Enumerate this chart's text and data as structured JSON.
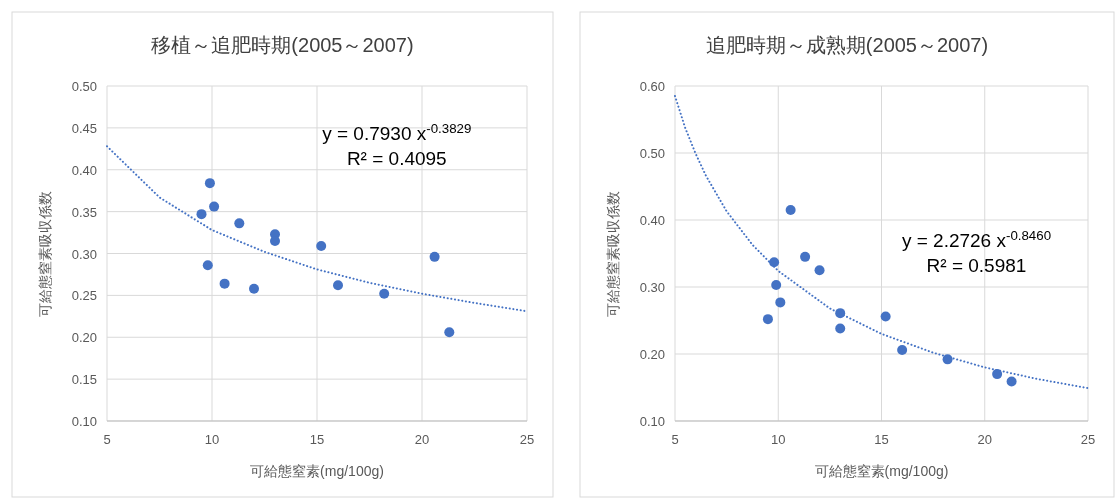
{
  "chart_data": [
    {
      "type": "scatter",
      "title": "移植～追肥時期(2005～2007)",
      "xlabel": "可給態窒素(mg/100g)",
      "ylabel": "可給態窒素吸収係数",
      "xlim": [
        5,
        25
      ],
      "xticks": [
        5,
        10,
        15,
        20,
        25
      ],
      "ylim": [
        0.1,
        0.5
      ],
      "yticks": [
        {
          "value": 0.1,
          "label": "0.10"
        },
        {
          "value": 0.15,
          "label": "0.15"
        },
        {
          "value": 0.2,
          "label": "0.20"
        },
        {
          "value": 0.25,
          "label": "0.25"
        },
        {
          "value": 0.3,
          "label": "0.30"
        },
        {
          "value": 0.35,
          "label": "0.35"
        },
        {
          "value": 0.4,
          "label": "0.40"
        },
        {
          "value": 0.45,
          "label": "0.45"
        },
        {
          "value": 0.5,
          "label": "0.50"
        }
      ],
      "grid": true,
      "series": [
        {
          "type": "scatter",
          "color": "#4472c4",
          "marker": "circle",
          "x": [
            9.9,
            10.1,
            9.5,
            11.3,
            13.0,
            13.0,
            15.2,
            20.6,
            9.8,
            10.6,
            12.0,
            16.0,
            18.2,
            21.3
          ],
          "values": [
            0.384,
            0.356,
            0.347,
            0.336,
            0.323,
            0.315,
            0.309,
            0.296,
            0.286,
            0.264,
            0.258,
            0.262,
            0.252,
            0.206
          ]
        },
        {
          "type": "line",
          "color": "#4472c4",
          "marker": "none",
          "line_style": "dotted",
          "x": [
            5,
            7.5,
            10,
            12.5,
            15,
            17.5,
            20,
            22.5,
            25
          ],
          "values": [
            0.428,
            0.367,
            0.328,
            0.302,
            0.281,
            0.265,
            0.252,
            0.241,
            0.231
          ]
        }
      ],
      "annotations": [
        "y = 0.7930 x$^{-0.3829}$",
        "R² = 0.4095"
      ]
    },
    {
      "type": "scatter",
      "title": "追肥時期～成熟期(2005～2007)",
      "xlabel": "可給態窒素(mg/100g)",
      "ylabel": "可給態窒素吸収係数",
      "xlim": [
        5,
        25
      ],
      "xticks": [
        5,
        10,
        15,
        20,
        25
      ],
      "ylim": [
        0.1,
        0.6
      ],
      "yticks": [
        {
          "value": 0.1,
          "label": "0.10"
        },
        {
          "value": 0.2,
          "label": "0.20"
        },
        {
          "value": 0.3,
          "label": "0.30"
        },
        {
          "value": 0.4,
          "label": "0.40"
        },
        {
          "value": 0.5,
          "label": "0.50"
        },
        {
          "value": 0.6,
          "label": "0.60"
        }
      ],
      "grid": true,
      "series": [
        {
          "type": "scatter",
          "color": "#4472c4",
          "marker": "circle",
          "x": [
            10.6,
            11.3,
            12.0,
            9.8,
            9.9,
            10.1,
            9.5,
            13.0,
            13.0,
            15.2,
            16.0,
            18.2,
            20.6,
            21.3
          ],
          "values": [
            0.415,
            0.345,
            0.325,
            0.337,
            0.303,
            0.277,
            0.252,
            0.261,
            0.238,
            0.256,
            0.206,
            0.192,
            0.17,
            0.159
          ]
        },
        {
          "type": "line",
          "color": "#4472c4",
          "marker": "none",
          "line_style": "dotted",
          "x": [
            5,
            5.5,
            6,
            6.5,
            7.5,
            8.75,
            10,
            12.5,
            15,
            17.5,
            20,
            22.5,
            25
          ],
          "values": [
            0.585,
            0.537,
            0.499,
            0.466,
            0.413,
            0.363,
            0.324,
            0.268,
            0.23,
            0.202,
            0.18,
            0.163,
            0.149
          ]
        }
      ],
      "annotations": [
        "y = 2.2726 x$^{-0.8460}$",
        "R² = 0.5981"
      ]
    }
  ]
}
